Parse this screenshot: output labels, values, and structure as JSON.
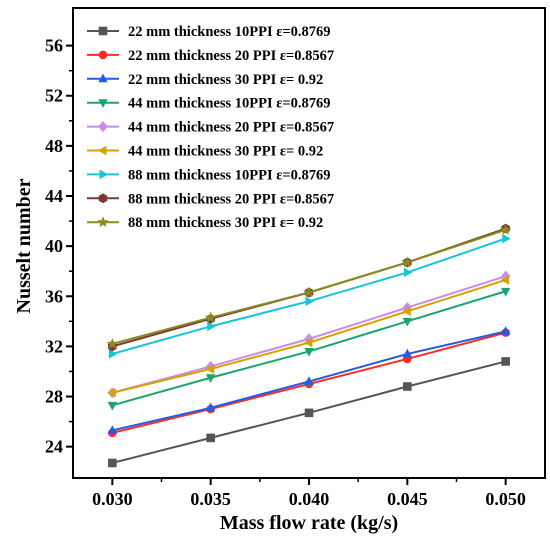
{
  "chart_data": {
    "type": "line",
    "xlabel": "Mass flow rate (kg/s)",
    "ylabel": "Nusselt number",
    "xlim": [
      0.028,
      0.052
    ],
    "ylim": [
      21.5,
      59
    ],
    "xticks": [
      "0.030",
      "0.035",
      "0.040",
      "0.045",
      "0.050"
    ],
    "yticks": [
      "24",
      "28",
      "32",
      "36",
      "40",
      "44",
      "48",
      "52",
      "56"
    ],
    "x": [
      0.03,
      0.035,
      0.04,
      0.045,
      0.05
    ],
    "grid": false,
    "legend_position": "top-left",
    "series": [
      {
        "name": "22 mm thickness 10PPI ε=0.8769",
        "color": "#555555",
        "marker": "square",
        "values": [
          22.7,
          24.7,
          26.7,
          28.8,
          30.8
        ]
      },
      {
        "name": "22 mm thickness 20 PPI ε=0.8567",
        "color": "#ff2a2a",
        "marker": "circle",
        "values": [
          25.1,
          27.0,
          29.0,
          31.0,
          33.1
        ]
      },
      {
        "name": "22 mm thickness 30 PPI ε= 0.92",
        "color": "#1f5fe0",
        "marker": "triangle-up",
        "values": [
          25.3,
          27.1,
          29.2,
          31.4,
          33.2
        ]
      },
      {
        "name": "44 mm thickness 10PPI ε=0.8769",
        "color": "#1aa56b",
        "marker": "triangle-down",
        "values": [
          27.3,
          29.5,
          31.6,
          34.0,
          36.4
        ]
      },
      {
        "name": "44 mm thickness 20 PPI ε=0.8567",
        "color": "#c78ce8",
        "marker": "diamond",
        "values": [
          28.3,
          30.4,
          32.6,
          35.1,
          37.6
        ]
      },
      {
        "name": "44 mm thickness 30 PPI ε= 0.92",
        "color": "#d7a100",
        "marker": "triangle-left",
        "values": [
          28.3,
          30.2,
          32.3,
          34.8,
          37.3
        ]
      },
      {
        "name": "88 mm thickness 10PPI ε=0.8769",
        "color": "#17c6d6",
        "marker": "triangle-right",
        "values": [
          31.4,
          33.6,
          35.6,
          37.9,
          40.6
        ]
      },
      {
        "name": "88 mm thickness 20 PPI ε=0.8567",
        "color": "#7a3a34",
        "marker": "hexagon",
        "values": [
          32.0,
          34.2,
          36.3,
          38.7,
          41.4
        ]
      },
      {
        "name": "88 mm thickness 30 PPI ε= 0.92",
        "color": "#8a8a1e",
        "marker": "star",
        "values": [
          32.2,
          34.3,
          36.3,
          38.7,
          41.3
        ]
      }
    ]
  }
}
